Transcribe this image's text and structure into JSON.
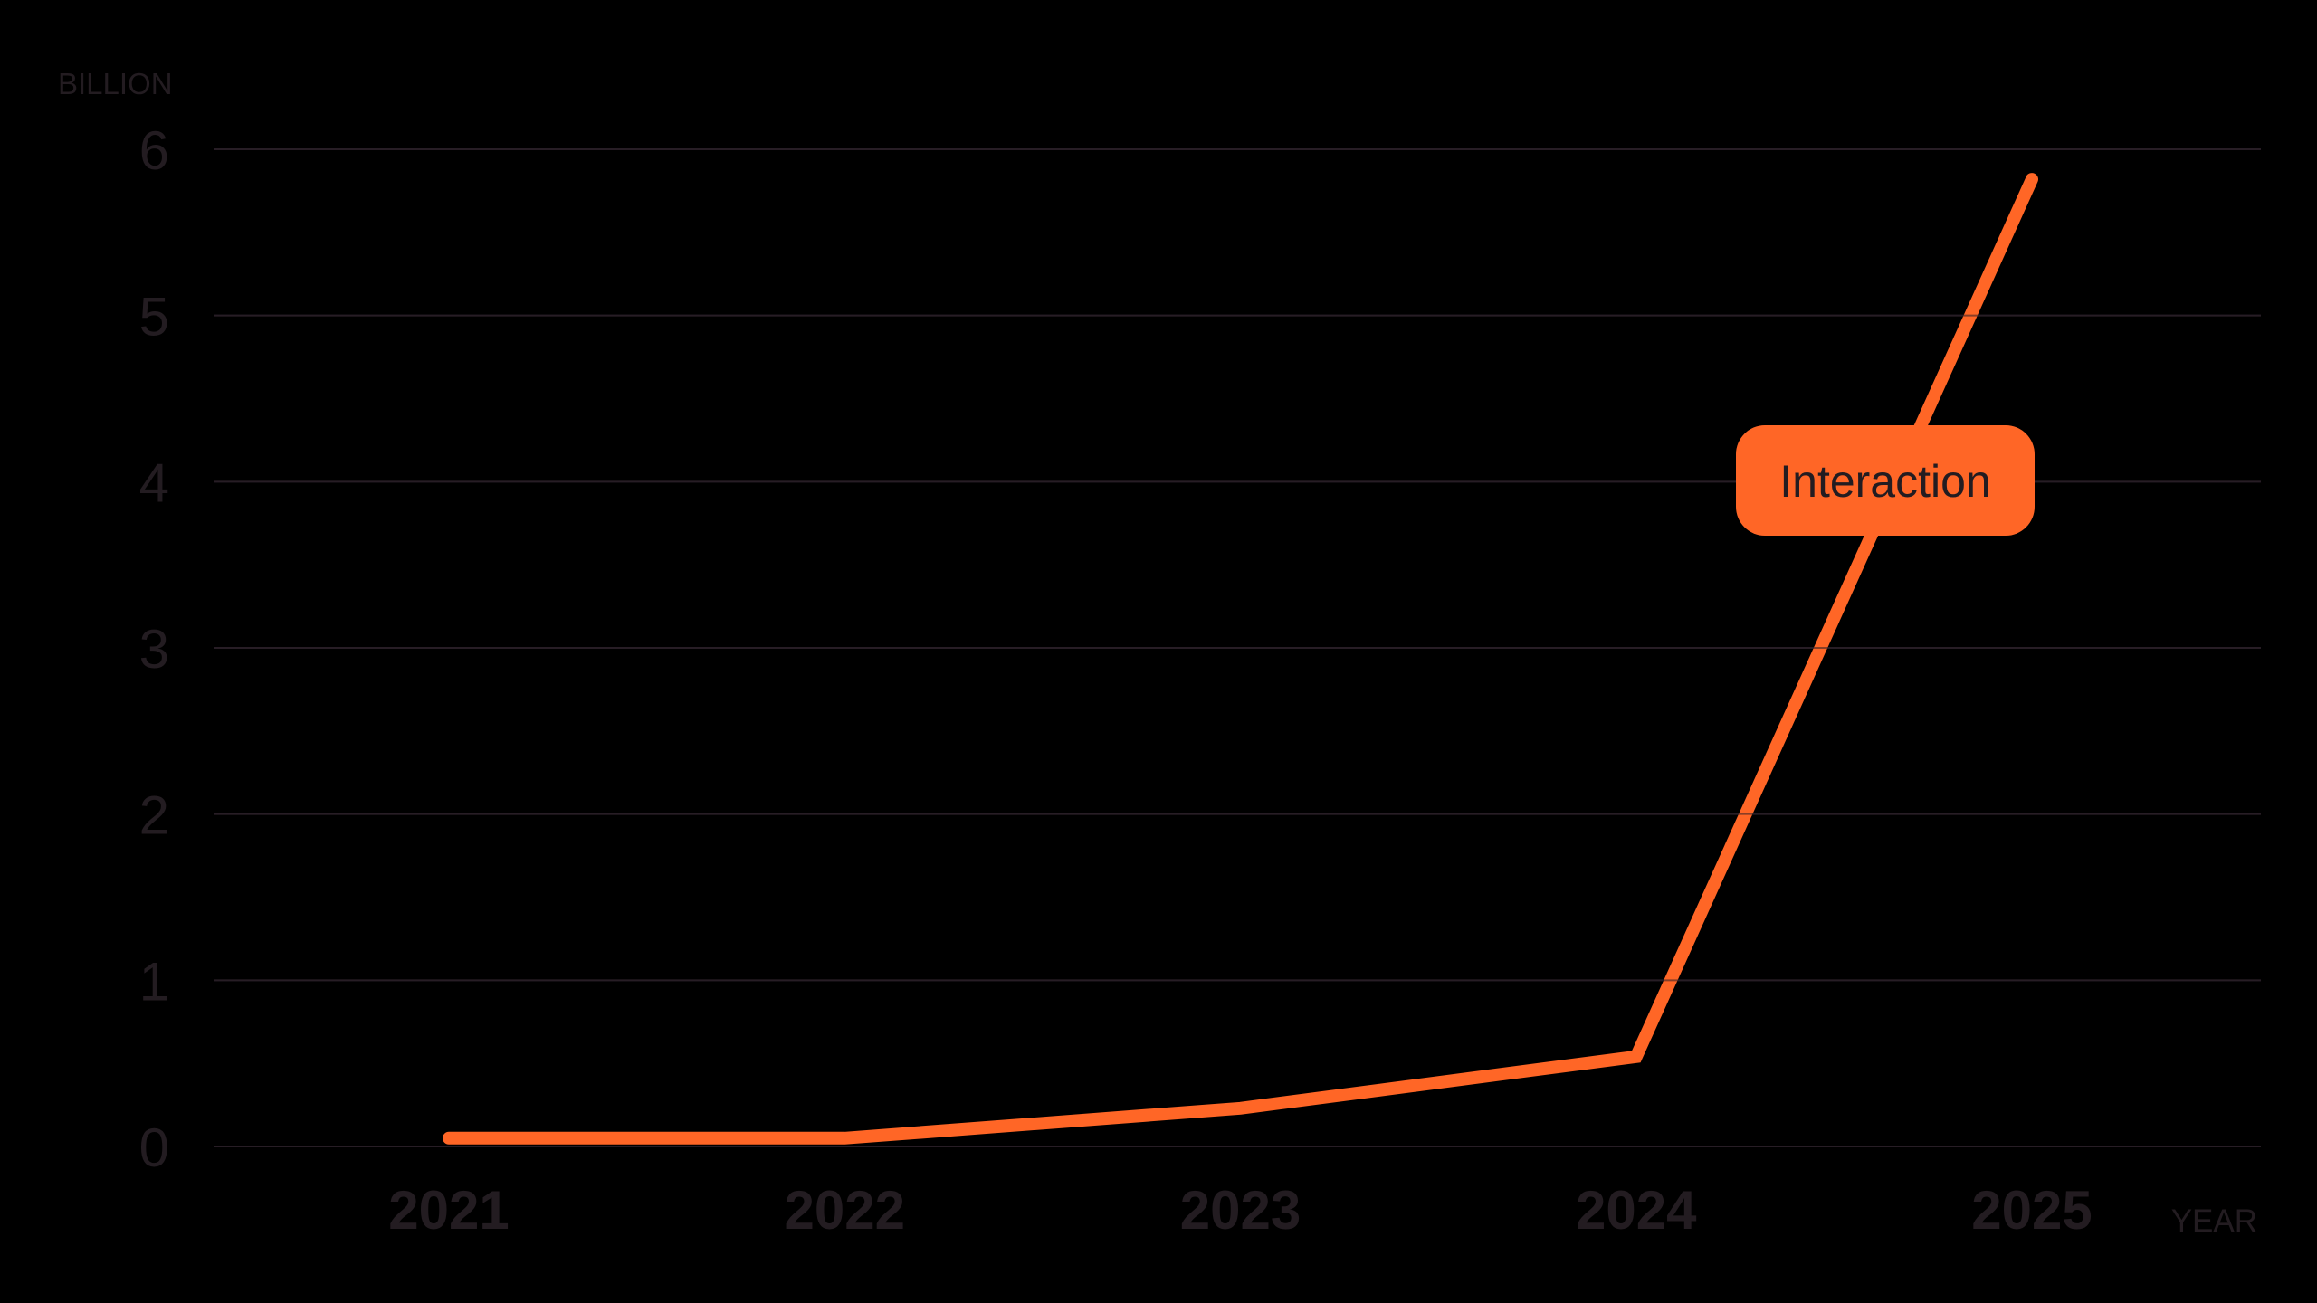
{
  "chart_data": {
    "type": "line",
    "title": "",
    "xlabel": "YEAR",
    "ylabel": "BILLION",
    "ylim": [
      0,
      6
    ],
    "yticks": [
      0,
      1,
      2,
      3,
      4,
      5,
      6
    ],
    "grid": true,
    "categories": [
      "2021",
      "2022",
      "2023",
      "2024",
      "2025"
    ],
    "series": [
      {
        "name": "Interaction",
        "values": [
          0.05,
          0.05,
          0.23,
          0.54,
          5.82
        ],
        "color": "#FF6626"
      }
    ],
    "annotations": [
      {
        "text": "Interaction",
        "series": "Interaction",
        "style": "filled-rounded-label"
      }
    ],
    "legend": "none"
  },
  "colors": {
    "background": "#000000",
    "text": "#231c21",
    "grid": "#2a1f27",
    "accent": "#FF6626"
  }
}
